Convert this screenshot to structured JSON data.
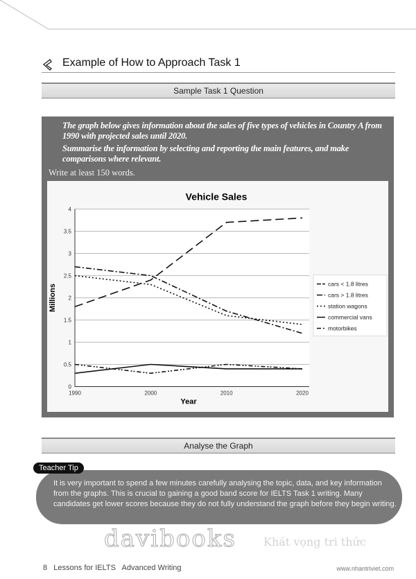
{
  "heading": {
    "title": "Example of How to Approach Task 1",
    "icon": "hourglass-pen-icon"
  },
  "sample_band": "Sample Task 1 Question",
  "question": {
    "p1": "The graph below gives information about the sales of five types of vehicles in Country A from 1990 with projected sales until 2020.",
    "p2": "Summarise the information by selecting and reporting the main features, and make comparisons where relevant.",
    "write": "Write at least 150 words."
  },
  "chart_data": {
    "type": "line",
    "title": "Vehicle Sales",
    "xlabel": "Year",
    "ylabel": "Millions",
    "x": [
      1990,
      2000,
      2010,
      2020
    ],
    "xticks": [
      "1990",
      "2000",
      "2010",
      "2020"
    ],
    "yticks": [
      "0",
      "0.5",
      "1",
      "1.5",
      "2",
      "2.5",
      "3",
      "3.5",
      "4"
    ],
    "ylim": [
      0,
      4
    ],
    "grid": true,
    "legend_position": "right",
    "series": [
      {
        "name": "cars < 1.8 litres",
        "values": [
          1.8,
          2.4,
          3.7,
          3.8
        ],
        "dash": "long-dash"
      },
      {
        "name": "cars > 1.8 litres",
        "values": [
          2.7,
          2.5,
          1.7,
          1.2
        ],
        "dash": "dash-dot"
      },
      {
        "name": "station wagons",
        "values": [
          2.5,
          2.3,
          1.6,
          1.4
        ],
        "dash": "dotted"
      },
      {
        "name": "commercial vans",
        "values": [
          0.3,
          0.5,
          0.4,
          0.4
        ],
        "dash": "solid"
      },
      {
        "name": "motorbikes",
        "values": [
          0.5,
          0.3,
          0.5,
          0.4
        ],
        "dash": "dash-dot-dot"
      }
    ]
  },
  "analyse_band": "Analyse the Graph",
  "tip": {
    "label": "Teacher Tip",
    "text": "It is very important to spend a few minutes carefully analysing the topic, data, and key information from the graphs. This is crucial to gaining a good band score for IELTS Task 1 writing. Many candidates get lower scores because they do not fully understand the graph before they begin writing."
  },
  "watermark": {
    "main": "davibooks",
    "sub": "Khát vọng tri thức"
  },
  "footer": {
    "page": "8",
    "book": "Lessons for IELTS   Advanced Writing",
    "url": "www.nhantriviet.com"
  }
}
